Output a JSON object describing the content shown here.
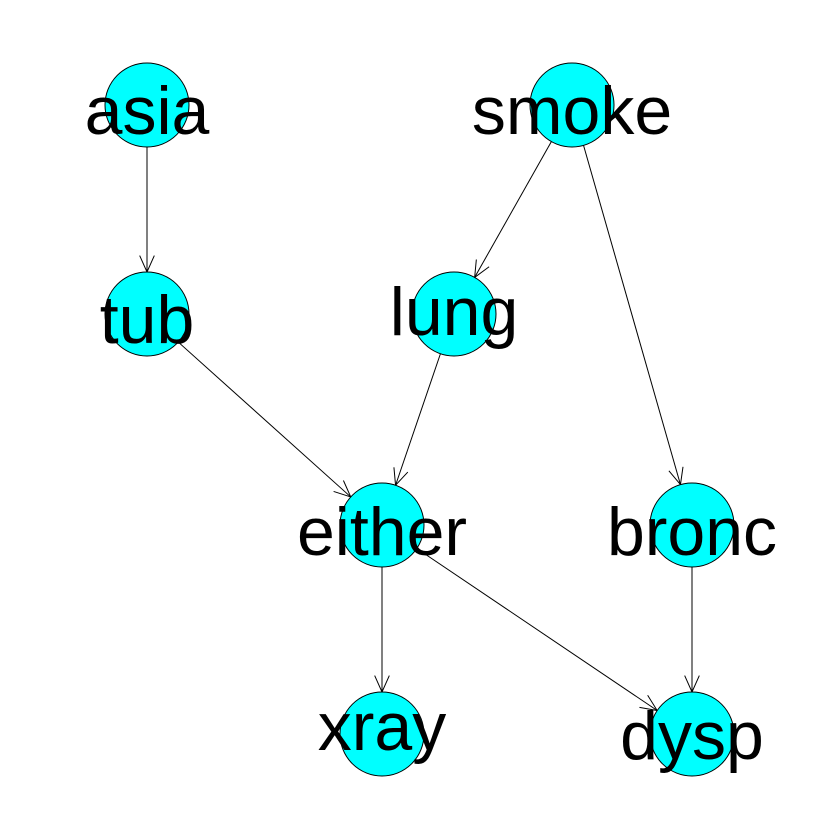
{
  "colors": {
    "node_fill": "#00ffff",
    "node_stroke": "#000000",
    "edge": "#000000",
    "label": "#000000",
    "background": "#ffffff"
  },
  "nodes": [
    {
      "id": "asia",
      "label": "asia"
    },
    {
      "id": "smoke",
      "label": "smoke"
    },
    {
      "id": "tub",
      "label": "tub"
    },
    {
      "id": "lung",
      "label": "lung"
    },
    {
      "id": "either",
      "label": "either"
    },
    {
      "id": "bronc",
      "label": "bronc"
    },
    {
      "id": "xray",
      "label": "xray"
    },
    {
      "id": "dysp",
      "label": "dysp"
    }
  ],
  "edges": [
    {
      "from": "asia",
      "to": "tub"
    },
    {
      "from": "smoke",
      "to": "lung"
    },
    {
      "from": "smoke",
      "to": "bronc"
    },
    {
      "from": "tub",
      "to": "either"
    },
    {
      "from": "lung",
      "to": "either"
    },
    {
      "from": "either",
      "to": "xray"
    },
    {
      "from": "either",
      "to": "dysp"
    },
    {
      "from": "bronc",
      "to": "dysp"
    }
  ]
}
